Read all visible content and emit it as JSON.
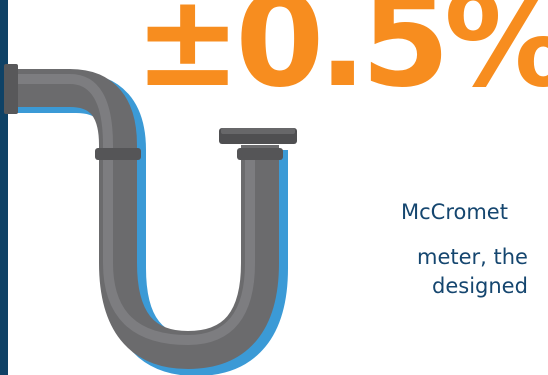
{
  "headline": {
    "stat": "±0.5%"
  },
  "description": {
    "lines": [
      "McCromet",
      "meter, the",
      "designed"
    ]
  },
  "colors": {
    "accent_orange": "#f78d1f",
    "navy": "#15466f",
    "left_bar": "#0f4266",
    "pipe_gray": "#6b6b6d",
    "pipe_shadow": "#3b9ad6"
  },
  "icons": {
    "pipe": "p-trap-pipe-icon"
  }
}
